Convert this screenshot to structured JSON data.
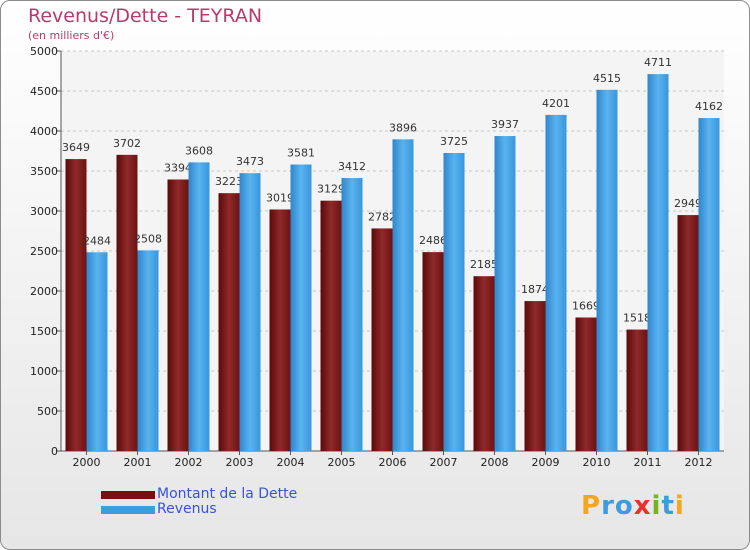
{
  "title": "Revenus/Dette - TEYRAN",
  "subtitle": "(en milliers d'€)",
  "colors": {
    "dette": "#7a0f0f",
    "revenus": "#3d9be0",
    "title": "#b73a6e",
    "legend_text": "#3a53d6"
  },
  "logo": {
    "letters": [
      "P",
      "r",
      "o",
      "x",
      "i",
      "t",
      "i"
    ],
    "colors": [
      "#f7a51b",
      "#3d9be0",
      "#3d9be0",
      "#e8322e",
      "#7ab317",
      "#3d9be0",
      "#f7a51b"
    ]
  },
  "chart_data": {
    "type": "bar",
    "title": "Revenus/Dette - TEYRAN",
    "ylim": [
      0,
      5000
    ],
    "yticks": [
      0,
      500,
      1000,
      1500,
      2000,
      2500,
      3000,
      3500,
      4000,
      4500,
      5000
    ],
    "grid": true,
    "legend_position": "bottom-left",
    "categories": [
      "2000",
      "2001",
      "2002",
      "2003",
      "2004",
      "2005",
      "2006",
      "2007",
      "2008",
      "2009",
      "2010",
      "2011",
      "2012"
    ],
    "series": [
      {
        "name": "Montant de la Dette",
        "values": [
          3649,
          3702,
          3394,
          3223,
          3019,
          3129,
          2782,
          2486,
          2185,
          1874,
          1669,
          1518,
          2949
        ]
      },
      {
        "name": "Revenus",
        "values": [
          2484,
          2508,
          3608,
          3473,
          3581,
          3412,
          3896,
          3725,
          3937,
          4201,
          4515,
          4711,
          4162
        ]
      }
    ]
  }
}
